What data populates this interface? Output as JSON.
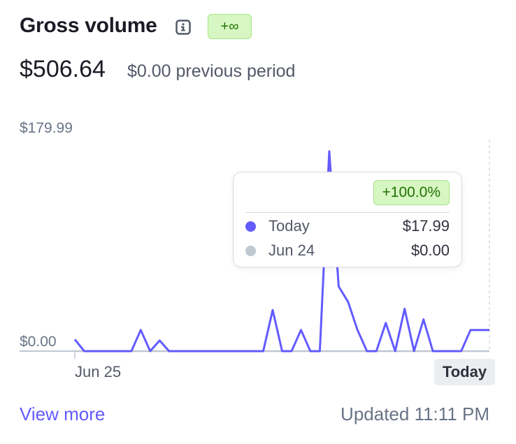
{
  "header": {
    "title": "Gross volume",
    "info_icon": "info-icon",
    "change_badge": "+∞"
  },
  "summary": {
    "total": "$506.64",
    "previous": "$0.00 previous period"
  },
  "colors": {
    "series_current": "#635bff",
    "series_previous": "#c0c8d2",
    "badge_bg": "#d7f7c2",
    "badge_text": "#217005"
  },
  "chart_data": {
    "type": "line",
    "title": "",
    "x_start_label": "Jun 25",
    "x_end_label": "Today",
    "y_tick_labels": [
      "$179.99",
      "$0.00"
    ],
    "ylim": [
      0,
      179.99
    ],
    "grid": false,
    "n_points": 45,
    "series": [
      {
        "name": "Today",
        "values": [
          10,
          0,
          0,
          0,
          0,
          0,
          0,
          18,
          0,
          9,
          0,
          0,
          0,
          0,
          0,
          0,
          0,
          0,
          0,
          0,
          0,
          35,
          0,
          0,
          18,
          0,
          0,
          170,
          55,
          42,
          18,
          0,
          0,
          24,
          0,
          36,
          0,
          27,
          0,
          0,
          0,
          0,
          18,
          18,
          18
        ]
      },
      {
        "name": "Jun 24",
        "values": [
          0,
          0,
          0,
          0,
          0,
          0,
          0,
          0,
          0,
          0,
          0,
          0,
          0,
          0,
          0,
          0,
          0,
          0,
          0,
          0,
          0,
          0,
          0,
          0,
          0,
          0,
          0,
          0,
          0,
          0,
          0,
          0,
          0,
          0,
          0,
          0,
          0,
          0,
          0,
          0,
          0,
          0,
          0,
          0,
          0
        ]
      }
    ]
  },
  "tooltip": {
    "change": "+100.0%",
    "rows": [
      {
        "label": "Today",
        "value": "$17.99"
      },
      {
        "label": "Jun 24",
        "value": "$0.00"
      }
    ]
  },
  "footer": {
    "view_more": "View more",
    "updated": "Updated 11:11 PM"
  }
}
